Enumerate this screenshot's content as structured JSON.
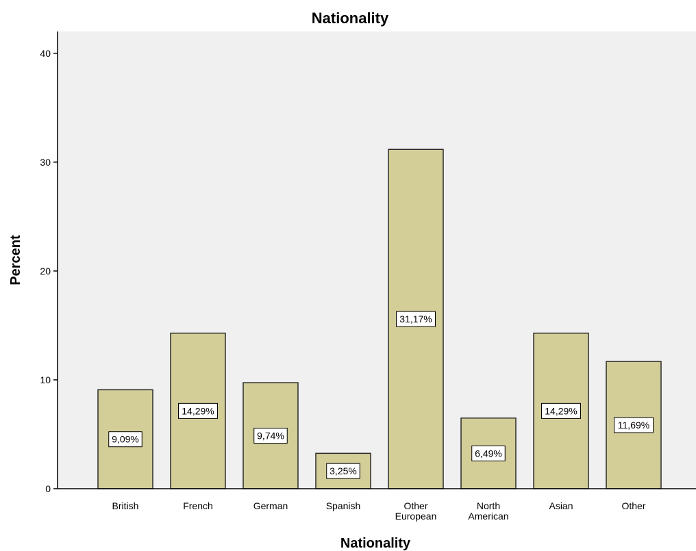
{
  "chart_data": {
    "type": "bar",
    "title": "Nationality",
    "xlabel": "Nationality",
    "ylabel": "Percent",
    "categories": [
      "British",
      "French",
      "German",
      "Spanish",
      "Other European",
      "North American",
      "Asian",
      "Other"
    ],
    "category_lines": [
      [
        "British"
      ],
      [
        "French"
      ],
      [
        "German"
      ],
      [
        "Spanish"
      ],
      [
        "Other",
        "European"
      ],
      [
        "North",
        "American"
      ],
      [
        "Asian"
      ],
      [
        "Other"
      ]
    ],
    "values": [
      9.09,
      14.29,
      9.74,
      3.25,
      31.17,
      6.49,
      14.29,
      11.69
    ],
    "data_labels": [
      "9,09%",
      "14,29%",
      "9,74%",
      "3,25%",
      "31,17%",
      "6,49%",
      "14,29%",
      "11,69%"
    ],
    "ylim": [
      0,
      42
    ],
    "yticks": [
      0,
      10,
      20,
      30,
      40
    ],
    "ytick_labels": [
      "0",
      "10",
      "20",
      "30",
      "40"
    ],
    "grid": false,
    "legend": "none",
    "colors": {
      "bar_fill": "#d3cd98",
      "bar_stroke": "#2b2b2b",
      "plot_background": "#f0f0f0",
      "axis": "#000000",
      "label_box_fill": "#ffffff",
      "label_box_stroke": "#000000"
    }
  }
}
